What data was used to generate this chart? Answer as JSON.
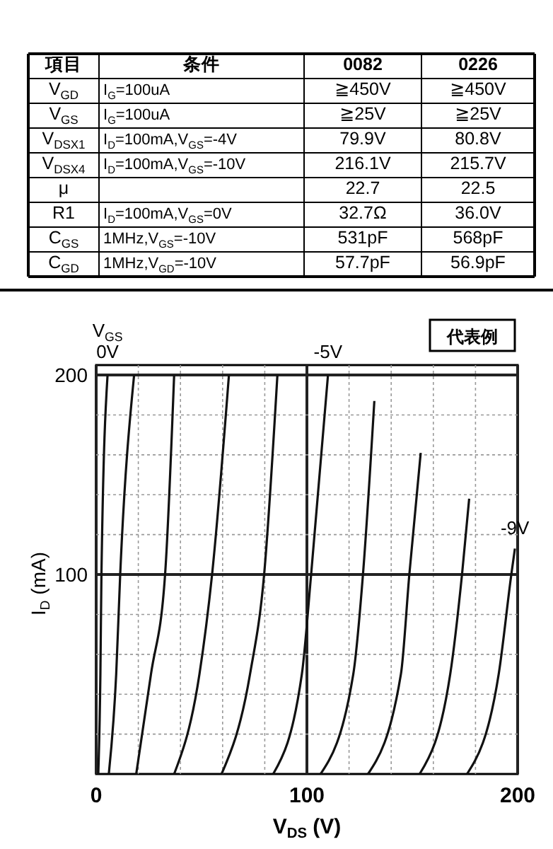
{
  "chart_data": [
    {
      "type": "other",
      "annotations": [
        "項目",
        "条件",
        "0082",
        "0226",
        "V$_{GD}$",
        "I$_{G}$=100uA",
        "≧450V",
        "≧450V",
        "V$_{GS}$",
        "I$_{G}$=100uA",
        "≧25V",
        "≧25V",
        "V$_{DSX1}$",
        "I$_{D}$=100mA,V$_{GS}$=-4V",
        "79.9V",
        "80.8V",
        "V$_{DSX4}$",
        "I$_{D}$=100mA,V$_{GS}$=-10V",
        "216.1V",
        "215.7V",
        "μ",
        null,
        "22.7",
        "22.5",
        "R1",
        "I$_{D}$=100mA,V$_{GS}$=0V",
        "32.7Ω",
        "36.0V",
        "C$_{GS}$",
        "1MHz,V$_{GS}$=-10V",
        "531pF",
        "568pF",
        "C$_{GD}$",
        "1MHz,V$_{GD}$=-10V",
        "57.7pF",
        "56.9pF"
      ]
    },
    {
      "type": "line",
      "xlabel": "V$_{DS}$ (V)",
      "ylabel": "I$_{D}$ (mA)",
      "legend_title": "V$_{GS}$",
      "annotations": [
        "代表例"
      ],
      "xlim": [
        0,
        200
      ],
      "ylim": [
        0,
        205
      ],
      "xticks": [
        0,
        {
          "value": 20,
          "label": null
        },
        {
          "value": 40,
          "label": null
        },
        {
          "value": 60,
          "label": null
        },
        {
          "value": 80,
          "label": null
        },
        100,
        {
          "value": 120,
          "label": null
        },
        {
          "value": 140,
          "label": null
        },
        {
          "value": 160,
          "label": null
        },
        {
          "value": 180,
          "label": null
        },
        200
      ],
      "yticks": [
        {
          "value": 20,
          "label": null
        },
        {
          "value": 40,
          "label": null
        },
        {
          "value": 60,
          "label": null
        },
        {
          "value": 80,
          "label": null
        },
        100,
        {
          "value": 120,
          "label": null
        },
        {
          "value": 140,
          "label": null
        },
        {
          "value": 160,
          "label": null
        },
        {
          "value": 180,
          "label": null
        },
        200
      ],
      "grid": true,
      "legend": false,
      "marker": "none",
      "line_style": "solid",
      "series": [
        {
          "name": "0V",
          "color": "#111111",
          "x": [
            1,
            2,
            2.5,
            5.4
          ],
          "values": [
            0,
            50,
            100,
            200
          ]
        },
        {
          "color": "#111111",
          "x": [
            6,
            9.5,
            11.4,
            18
          ],
          "values": [
            0,
            50,
            100,
            200
          ]
        },
        {
          "color": "#111111",
          "x": [
            19,
            26,
            32.7,
            37
          ],
          "values": [
            0,
            50,
            100,
            200
          ]
        },
        {
          "color": "#111111",
          "x": [
            37,
            49,
            55,
            63
          ],
          "values": [
            0,
            50,
            100,
            200
          ]
        },
        {
          "color": "#111111",
          "x": [
            59.5,
            73,
            79.7,
            86
          ],
          "values": [
            0,
            50,
            100,
            200
          ]
        },
        {
          "name": "-5V",
          "color": "#111111",
          "x": [
            84,
            97.6,
            102,
            110
          ],
          "values": [
            0,
            50,
            100,
            200
          ]
        },
        {
          "color": "#111111",
          "x": [
            106.5,
            122,
            126.6,
            132
          ],
          "values": [
            0,
            50,
            100,
            187
          ]
        },
        {
          "color": "#111111",
          "x": [
            129,
            144.6,
            148.6,
            154
          ],
          "values": [
            0,
            50,
            100,
            161
          ]
        },
        {
          "color": "#111111",
          "x": [
            153.5,
            168,
            173.6,
            177
          ],
          "values": [
            0,
            50,
            100,
            138
          ]
        },
        {
          "name": "-9V",
          "color": "#111111",
          "x": [
            176,
            191,
            197,
            198.7
          ],
          "values": [
            0,
            50,
            100,
            113
          ]
        }
      ]
    }
  ]
}
